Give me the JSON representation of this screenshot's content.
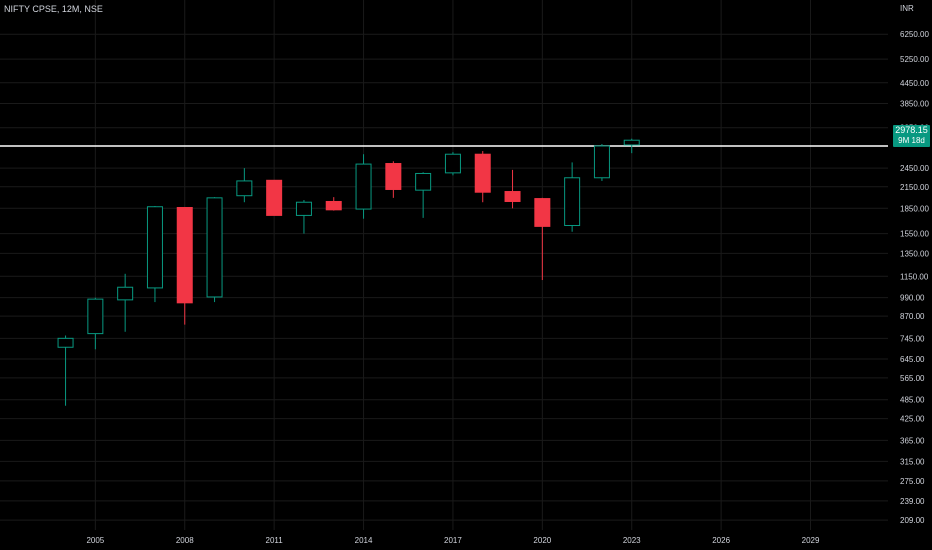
{
  "header": {
    "symbol_line": "NIFTY CPSE, 12M, NSE",
    "currency": "INR"
  },
  "price_badge": {
    "price": "2978.15",
    "countdown": "9M 18d"
  },
  "colors": {
    "background": "#000000",
    "up": "#089981",
    "down": "#f23645",
    "grid": "#1a1a1a",
    "axis_text": "#d1d4dc",
    "hline": "#ffffff"
  },
  "chart_data": {
    "type": "candlestick",
    "scale": "log",
    "ylim": [
      195,
      7000
    ],
    "xlim": [
      2001.8,
      2031.6
    ],
    "y_ticks": [
      6250,
      5250,
      4450,
      3850,
      3250,
      2450,
      2150,
      1850,
      1550,
      1350,
      1150,
      990,
      870,
      745,
      645,
      565,
      485,
      425,
      365,
      315,
      275,
      239,
      209
    ],
    "y_tick_labels": [
      "6250.00",
      "5250.00",
      "4450.00",
      "3850.00",
      "3250.00",
      "2450.00",
      "2150.00",
      "1850.00",
      "1550.00",
      "1350.00",
      "1150.00",
      "990.00",
      "870.00",
      "745.00",
      "645.00",
      "565.00",
      "485.00",
      "425.00",
      "365.00",
      "315.00",
      "275.00",
      "239.00",
      "209.00"
    ],
    "x_ticks": [
      2005,
      2008,
      2011,
      2014,
      2017,
      2020,
      2023,
      2026,
      2029
    ],
    "x_tick_labels": [
      "2005",
      "2008",
      "2011",
      "2014",
      "2017",
      "2020",
      "2023",
      "2026",
      "2029"
    ],
    "horizontal_line": 2860,
    "grid": true,
    "candles": [
      {
        "year": 2004,
        "open": 700,
        "high": 760,
        "low": 465,
        "close": 745
      },
      {
        "year": 2005,
        "open": 770,
        "high": 990,
        "low": 690,
        "close": 980
      },
      {
        "year": 2006,
        "open": 975,
        "high": 1170,
        "low": 780,
        "close": 1065
      },
      {
        "year": 2007,
        "open": 1060,
        "high": 1880,
        "low": 960,
        "close": 1870
      },
      {
        "year": 2008,
        "open": 1860,
        "high": 1860,
        "low": 820,
        "close": 955
      },
      {
        "year": 2009,
        "open": 995,
        "high": 2000,
        "low": 960,
        "close": 1990
      },
      {
        "year": 2010,
        "open": 2020,
        "high": 2450,
        "low": 1930,
        "close": 2240
      },
      {
        "year": 2011,
        "open": 2250,
        "high": 2250,
        "low": 1760,
        "close": 1760
      },
      {
        "year": 2012,
        "open": 1760,
        "high": 1960,
        "low": 1550,
        "close": 1930
      },
      {
        "year": 2013,
        "open": 1940,
        "high": 2000,
        "low": 1820,
        "close": 1830
      },
      {
        "year": 2014,
        "open": 1840,
        "high": 2700,
        "low": 1720,
        "close": 2520
      },
      {
        "year": 2015,
        "open": 2530,
        "high": 2570,
        "low": 1990,
        "close": 2110
      },
      {
        "year": 2016,
        "open": 2100,
        "high": 2380,
        "low": 1730,
        "close": 2360
      },
      {
        "year": 2017,
        "open": 2370,
        "high": 2740,
        "low": 2330,
        "close": 2700
      },
      {
        "year": 2018,
        "open": 2700,
        "high": 2760,
        "low": 1930,
        "close": 2070
      },
      {
        "year": 2019,
        "open": 2080,
        "high": 2420,
        "low": 1850,
        "close": 1940
      },
      {
        "year": 2020,
        "open": 1980,
        "high": 1990,
        "low": 1120,
        "close": 1630
      },
      {
        "year": 2021,
        "open": 1640,
        "high": 2550,
        "low": 1570,
        "close": 2290
      },
      {
        "year": 2022,
        "open": 2290,
        "high": 2900,
        "low": 2240,
        "close": 2860
      },
      {
        "year": 2023,
        "open": 2880,
        "high": 3010,
        "low": 2720,
        "close": 2978
      }
    ]
  }
}
